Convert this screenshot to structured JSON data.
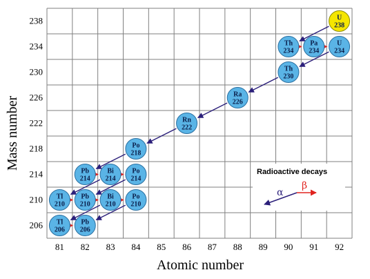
{
  "axes": {
    "x_title": "Atomic number",
    "y_title": "Mass number",
    "x_ticks": [
      "81",
      "82",
      "83",
      "84",
      "85",
      "86",
      "87",
      "88",
      "89",
      "90",
      "91",
      "92"
    ],
    "y_ticks": [
      "206",
      "210",
      "214",
      "218",
      "222",
      "226",
      "230",
      "234",
      "238"
    ]
  },
  "nuclides": [
    {
      "symbol": "U",
      "mass": "238",
      "z": 92,
      "a": 238,
      "color": "#f5e600",
      "border": "#8a8a00"
    },
    {
      "symbol": "Th",
      "mass": "234",
      "z": 90,
      "a": 234,
      "color": "#5ab4e6",
      "border": "#2a6fa0"
    },
    {
      "symbol": "Pa",
      "mass": "234",
      "z": 91,
      "a": 234,
      "color": "#5ab4e6",
      "border": "#2a6fa0"
    },
    {
      "symbol": "U",
      "mass": "234",
      "z": 92,
      "a": 234,
      "color": "#5ab4e6",
      "border": "#2a6fa0"
    },
    {
      "symbol": "Th",
      "mass": "230",
      "z": 90,
      "a": 230,
      "color": "#5ab4e6",
      "border": "#2a6fa0"
    },
    {
      "symbol": "Ra",
      "mass": "226",
      "z": 88,
      "a": 226,
      "color": "#5ab4e6",
      "border": "#2a6fa0"
    },
    {
      "symbol": "Rn",
      "mass": "222",
      "z": 86,
      "a": 222,
      "color": "#5ab4e6",
      "border": "#2a6fa0"
    },
    {
      "symbol": "Po",
      "mass": "218",
      "z": 84,
      "a": 218,
      "color": "#5ab4e6",
      "border": "#2a6fa0"
    },
    {
      "symbol": "Pb",
      "mass": "214",
      "z": 82,
      "a": 214,
      "color": "#5ab4e6",
      "border": "#2a6fa0"
    },
    {
      "symbol": "Bi",
      "mass": "214",
      "z": 83,
      "a": 214,
      "color": "#5ab4e6",
      "border": "#2a6fa0"
    },
    {
      "symbol": "Po",
      "mass": "214",
      "z": 84,
      "a": 214,
      "color": "#5ab4e6",
      "border": "#2a6fa0"
    },
    {
      "symbol": "Tl",
      "mass": "210",
      "z": 81,
      "a": 210,
      "color": "#5ab4e6",
      "border": "#2a6fa0"
    },
    {
      "symbol": "Pb",
      "mass": "210",
      "z": 82,
      "a": 210,
      "color": "#5ab4e6",
      "border": "#2a6fa0"
    },
    {
      "symbol": "Bi",
      "mass": "210",
      "z": 83,
      "a": 210,
      "color": "#5ab4e6",
      "border": "#2a6fa0"
    },
    {
      "symbol": "Po",
      "mass": "210",
      "z": 84,
      "a": 210,
      "color": "#5ab4e6",
      "border": "#2a6fa0"
    },
    {
      "symbol": "Tl",
      "mass": "206",
      "z": 81,
      "a": 206,
      "color": "#5ab4e6",
      "border": "#2a6fa0"
    },
    {
      "symbol": "Pb",
      "mass": "206",
      "z": 82,
      "a": 206,
      "color": "#5ab4e6",
      "border": "#2a6fa0"
    }
  ],
  "decays": [
    {
      "type": "alpha",
      "from": [
        92,
        238
      ],
      "to": [
        90,
        234
      ]
    },
    {
      "type": "beta",
      "from": [
        90,
        234
      ],
      "to": [
        91,
        234
      ]
    },
    {
      "type": "beta",
      "from": [
        91,
        234
      ],
      "to": [
        92,
        234
      ]
    },
    {
      "type": "alpha",
      "from": [
        92,
        234
      ],
      "to": [
        90,
        230
      ]
    },
    {
      "type": "alpha",
      "from": [
        90,
        230
      ],
      "to": [
        88,
        226
      ]
    },
    {
      "type": "alpha",
      "from": [
        88,
        226
      ],
      "to": [
        86,
        222
      ]
    },
    {
      "type": "alpha",
      "from": [
        86,
        222
      ],
      "to": [
        84,
        218
      ]
    },
    {
      "type": "alpha",
      "from": [
        84,
        218
      ],
      "to": [
        82,
        214
      ]
    },
    {
      "type": "beta",
      "from": [
        82,
        214
      ],
      "to": [
        83,
        214
      ]
    },
    {
      "type": "beta",
      "from": [
        83,
        214
      ],
      "to": [
        84,
        214
      ]
    },
    {
      "type": "alpha",
      "from": [
        84,
        214
      ],
      "to": [
        82,
        210
      ]
    },
    {
      "type": "alpha",
      "from": [
        83,
        214
      ],
      "to": [
        81,
        210
      ]
    },
    {
      "type": "beta",
      "from": [
        81,
        210
      ],
      "to": [
        82,
        210
      ]
    },
    {
      "type": "beta",
      "from": [
        82,
        210
      ],
      "to": [
        83,
        210
      ]
    },
    {
      "type": "beta",
      "from": [
        83,
        210
      ],
      "to": [
        84,
        210
      ]
    },
    {
      "type": "alpha",
      "from": [
        83,
        210
      ],
      "to": [
        81,
        206
      ]
    },
    {
      "type": "alpha",
      "from": [
        84,
        210
      ],
      "to": [
        82,
        206
      ]
    },
    {
      "type": "beta",
      "from": [
        81,
        206
      ],
      "to": [
        82,
        206
      ]
    }
  ],
  "legend": {
    "title": "Radioactive decays",
    "alpha_label": "α",
    "beta_label": "β"
  },
  "colors": {
    "alpha": "#2b1f7a",
    "beta": "#e0231f",
    "grid": "#7f7f7f"
  }
}
